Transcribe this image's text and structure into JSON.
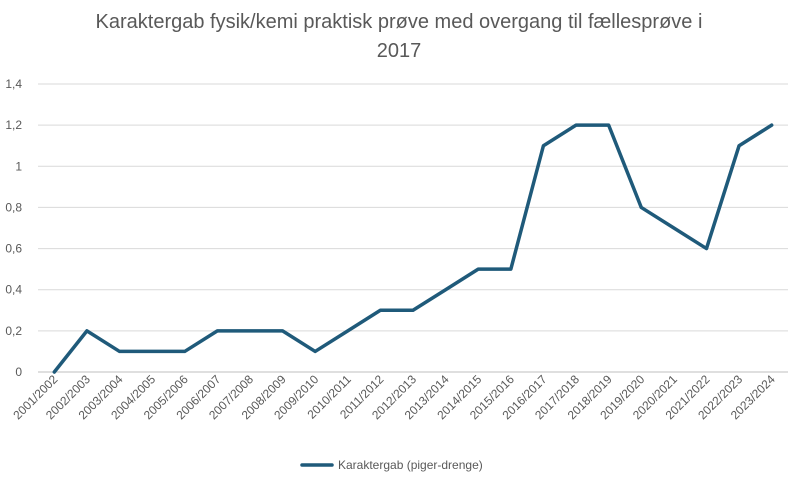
{
  "chart_data": {
    "type": "line",
    "title_line1": "Karaktergab fysik/kemi praktisk prøve med overgang til fællesprøve i",
    "title_line2": "2017",
    "categories": [
      "2001/2002",
      "2002/2003",
      "2003/2004",
      "2004/2005",
      "2005/2006",
      "2006/2007",
      "2007/2008",
      "2008/2009",
      "2009/2010",
      "2010/2011",
      "2011/2012",
      "2012/2013",
      "2013/2014",
      "2014/2015",
      "2015/2016",
      "2016/2017",
      "2017/2018",
      "2018/2019",
      "2019/2020",
      "2020/2021",
      "2021/2022",
      "2022/2023",
      "2023/2024"
    ],
    "series": [
      {
        "name": "Karaktergab (piger-drenge)",
        "values": [
          0,
          0.2,
          0.1,
          0.1,
          0.1,
          0.2,
          0.2,
          0.2,
          0.1,
          0.2,
          0.3,
          0.3,
          0.4,
          0.5,
          0.5,
          1.1,
          1.2,
          1.2,
          0.8,
          0.7,
          0.6,
          1.1,
          1.2
        ]
      }
    ],
    "y_ticks": [
      "0",
      "0,2",
      "0,4",
      "0,6",
      "0,8",
      "1",
      "1,2",
      "1,4"
    ],
    "ylim": [
      0,
      1.4
    ],
    "grid": true,
    "legend_position": "bottom",
    "colors": {
      "line": "#1f5a7a",
      "grid": "#d9d9d9",
      "text": "#595959",
      "title": "#595959"
    }
  }
}
